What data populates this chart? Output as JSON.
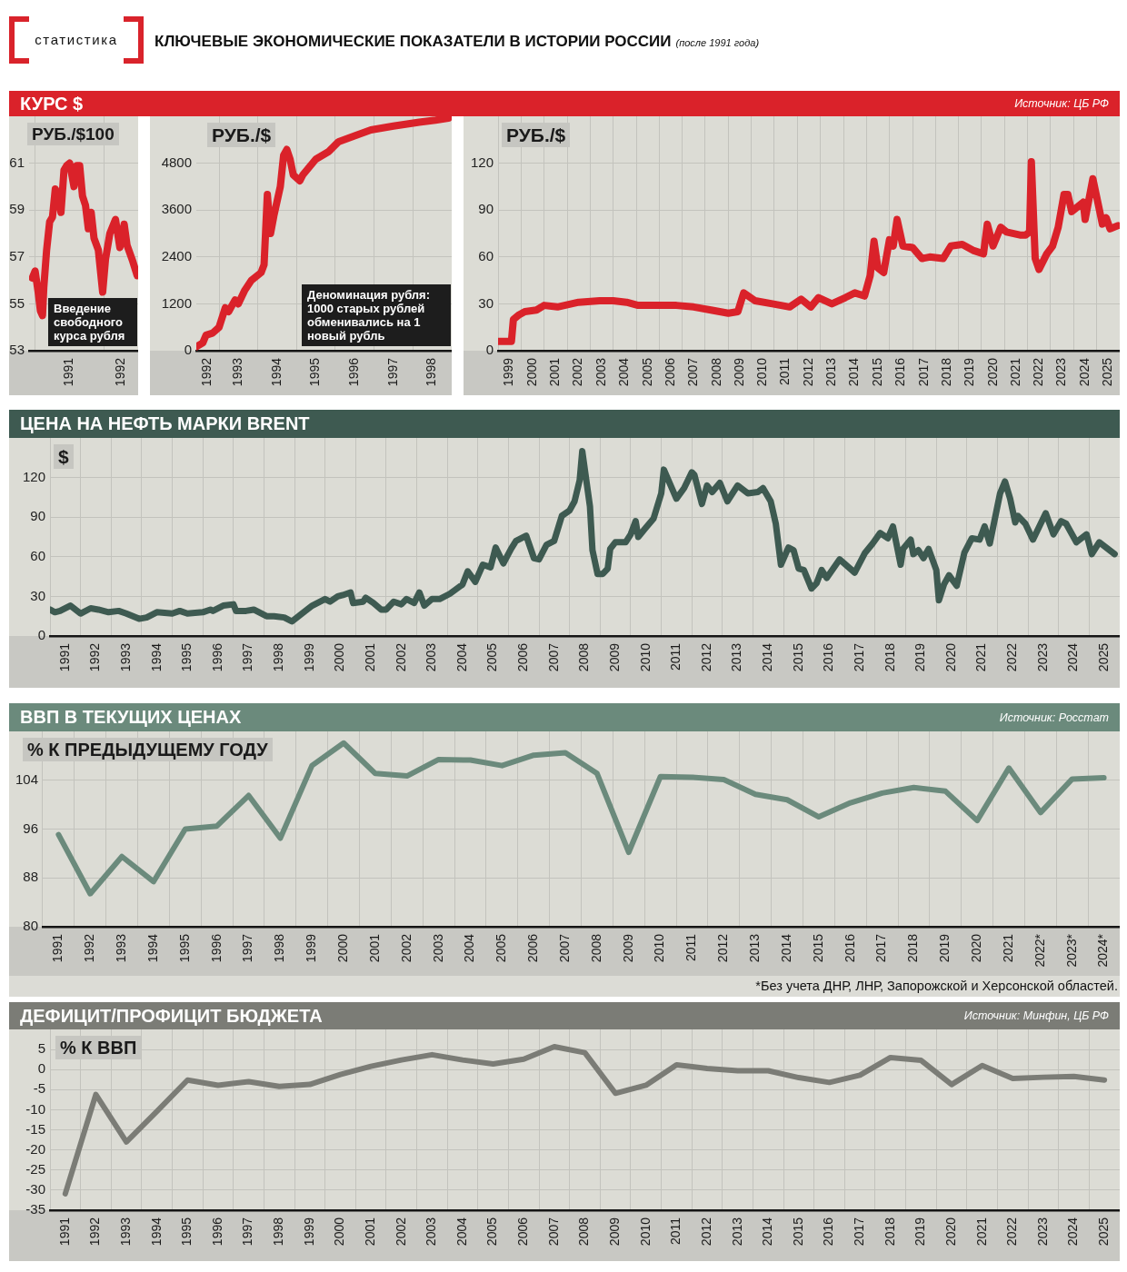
{
  "chart_data": [
    {
      "type": "other",
      "title": "КЛЮЧЕВЫЕ ЭКОНОМИЧЕСКИЕ ПОКАЗАТЕЛИ В ИСТОРИИ РОССИИ",
      "subtitle": "(после 1991 года)",
      "annotations": [
        "статистика"
      ]
    },
    {
      "type": "line",
      "title": "КУРС $",
      "ylabel": "РУБ./$100",
      "annotations": [
        "Источник: ЦБ РФ",
        "Введение свободного курса рубля"
      ],
      "x": [
        "1990-12-18",
        "1991-01-02",
        "1991-01-18",
        "1991-01-30",
        "1991-02-10",
        "1991-02-17",
        "1991-03-04",
        "1991-03-20",
        "1991-04-04",
        "1991-04-19",
        "1991-05-04",
        "1991-05-19",
        "1991-06-04",
        "1991-06-19",
        "1991-07-04",
        "1991-07-27",
        "1991-08-11",
        "1991-08-26",
        "1991-09-10",
        "1991-09-26",
        "1991-10-11",
        "1991-10-26",
        "1991-11-10",
        "1991-12-03",
        "1991-12-26",
        "1992-01-10",
        "1992-02-02",
        "1992-03-03",
        "1992-03-26",
        "1992-04-18",
        "1992-05-03",
        "1992-06-03",
        "1992-06-26"
      ],
      "series": [
        {
          "color": "#da222a",
          "values": [
            56.1,
            56.4,
            55.5,
            54.7,
            54.5,
            55.7,
            57.3,
            58.5,
            58.7,
            59.9,
            59.6,
            58.9,
            60.7,
            60.9,
            61.0,
            60.0,
            60.9,
            60.9,
            59.6,
            59.2,
            58.2,
            58.9,
            57.8,
            57.3,
            55.5,
            56.9,
            58.0,
            58.6,
            57.4,
            58.4,
            57.5,
            56.8,
            56.2
          ]
        }
      ],
      "xlim": [
        "1990-12-01",
        "1992-07-01"
      ],
      "xticks": [
        {
          "value": "1991",
          "label": null
        },
        {
          "value": "1991-07-02",
          "label": "1991"
        },
        {
          "value": "1992",
          "label": null
        },
        {
          "value": "1992-04-01",
          "label": "1992"
        }
      ],
      "ylim": [
        53,
        63
      ],
      "yticks": [
        53,
        55,
        57,
        59,
        61
      ],
      "grid": true
    },
    {
      "type": "line",
      "ylabel": "РУБ./$",
      "annotations": [
        "Деноминация рубля: 1000 старых рублей обменивались на 1 новый рубль"
      ],
      "x": [
        "1992-06",
        "1992-08",
        "1992-09",
        "1992-11",
        "1993-01",
        "1993-03",
        "1993-04",
        "1993-06",
        "1993-07",
        "1993-09",
        "1993-11",
        "1994-02",
        "1994-03",
        "1994-04",
        "1994-05",
        "1994-06",
        "1994-08",
        "1994-09",
        "1994-10",
        "1994-11",
        "1994-12",
        "1995-02",
        "1995-03",
        "1995-07",
        "1995-11",
        "1996-02",
        "1996-07",
        "1996-12",
        "1997-07",
        "1998-03",
        "1998-08",
        "1998-12"
      ],
      "series": [
        {
          "color": "#da222a",
          "values": [
            100,
            200,
            400,
            450,
            600,
            1100,
            1000,
            1300,
            1200,
            1550,
            1800,
            2000,
            2200,
            4000,
            3000,
            3450,
            4200,
            5000,
            5150,
            4900,
            4500,
            4350,
            4500,
            4900,
            5100,
            5350,
            5500,
            5650,
            5750,
            5850,
            5900,
            5950
          ]
        }
      ],
      "xlim": [
        "1992-06",
        "1999"
      ],
      "xticks": [
        {
          "value": "1992-09-16",
          "label": "1992"
        },
        {
          "value": "1993",
          "label": null
        },
        {
          "value": "1993-07-02",
          "label": "1993"
        },
        {
          "value": "1994",
          "label": null
        },
        {
          "value": "1994-07-02",
          "label": "1994"
        },
        {
          "value": "1995",
          "label": null
        },
        {
          "value": "1995-07-02",
          "label": "1995"
        },
        {
          "value": "1996",
          "label": null
        },
        {
          "value": "1996-07-02",
          "label": "1996"
        },
        {
          "value": "1997",
          "label": null
        },
        {
          "value": "1997-07-02",
          "label": "1997"
        },
        {
          "value": "1998",
          "label": null
        },
        {
          "value": "1998-07-02",
          "label": "1998"
        }
      ],
      "ylim": [
        0,
        6000
      ],
      "yticks": [
        0,
        1200,
        2400,
        3600,
        4800
      ],
      "grid": true
    },
    {
      "type": "line",
      "ylabel": "РУБ./$",
      "x": [
        "1999-01",
        "1999-08",
        "1999-09",
        "1999-12",
        "2000-03",
        "2000-09",
        "2001-01",
        "2001-08",
        "2002-07",
        "2003-06",
        "2004-01",
        "2004-08",
        "2005-02",
        "2005-11",
        "2006-10",
        "2007-07",
        "2008-04",
        "2009-01",
        "2009-06",
        "2009-09",
        "2010-03",
        "2010-12",
        "2011-09",
        "2012-03",
        "2012-08",
        "2012-12",
        "2013-07",
        "2014-02",
        "2014-07",
        "2014-12",
        "2015-03",
        "2015-05",
        "2015-07",
        "2015-10",
        "2016-01",
        "2016-03",
        "2016-05",
        "2016-08",
        "2017-01",
        "2017-06",
        "2017-10",
        "2018-05",
        "2018-09",
        "2019-03",
        "2019-09",
        "2020-02",
        "2020-04",
        "2020-07",
        "2020-11",
        "2021-02",
        "2021-09",
        "2021-12",
        "2022-02",
        "2022-03",
        "2022-05",
        "2022-07",
        "2022-11",
        "2023-02",
        "2023-05",
        "2023-08",
        "2023-10",
        "2023-12",
        "2024-06",
        "2024-07",
        "2024-11",
        "2025-04",
        "2025-06",
        "2025-08",
        "2025-12"
      ],
      "series": [
        {
          "color": "#da222a",
          "values": [
            6,
            6,
            20,
            23,
            25,
            26,
            29,
            28,
            31,
            32,
            32,
            31,
            29,
            29,
            29,
            28,
            26,
            24,
            25,
            37,
            32,
            30,
            28,
            33,
            28,
            34,
            30,
            34,
            37,
            35,
            48,
            70,
            53,
            50,
            71,
            67,
            84,
            67,
            66,
            59,
            60,
            59,
            67,
            68,
            64,
            62,
            81,
            67,
            79,
            76,
            74,
            74,
            76,
            121,
            59,
            52,
            62,
            67,
            79,
            100,
            100,
            89,
            95,
            84,
            110,
            81,
            85,
            78,
            80
          ]
        }
      ],
      "xlim": [
        "1999",
        "2026"
      ],
      "xticks": [
        {
          "value": "1999",
          "label": null
        },
        {
          "value": "1999-07-02",
          "label": "1999"
        },
        {
          "value": "2000",
          "label": null
        },
        {
          "value": "2000-07-02",
          "label": "2000"
        },
        {
          "value": "2001",
          "label": null
        },
        {
          "value": "2001-07-02",
          "label": "2001"
        },
        {
          "value": "2002",
          "label": null
        },
        {
          "value": "2002-07-02",
          "label": "2002"
        },
        {
          "value": "2003",
          "label": null
        },
        {
          "value": "2003-07-02",
          "label": "2003"
        },
        {
          "value": "2004",
          "label": null
        },
        {
          "value": "2004-07-02",
          "label": "2004"
        },
        {
          "value": "2005",
          "label": null
        },
        {
          "value": "2005-07-02",
          "label": "2005"
        },
        {
          "value": "2006",
          "label": null
        },
        {
          "value": "2006-07-02",
          "label": "2006"
        },
        {
          "value": "2007",
          "label": null
        },
        {
          "value": "2007-07-02",
          "label": "2007"
        },
        {
          "value": "2008",
          "label": null
        },
        {
          "value": "2008-07-02",
          "label": "2008"
        },
        {
          "value": "2009",
          "label": null
        },
        {
          "value": "2009-07-02",
          "label": "2009"
        },
        {
          "value": "2010",
          "label": null
        },
        {
          "value": "2010-07-02",
          "label": "2010"
        },
        {
          "value": "2011",
          "label": null
        },
        {
          "value": "2011-07-02",
          "label": "2011"
        },
        {
          "value": "2012",
          "label": null
        },
        {
          "value": "2012-07-02",
          "label": "2012"
        },
        {
          "value": "2013",
          "label": null
        },
        {
          "value": "2013-07-02",
          "label": "2013"
        },
        {
          "value": "2014",
          "label": null
        },
        {
          "value": "2014-07-02",
          "label": "2014"
        },
        {
          "value": "2015",
          "label": null
        },
        {
          "value": "2015-07-02",
          "label": "2015"
        },
        {
          "value": "2016",
          "label": null
        },
        {
          "value": "2016-07-02",
          "label": "2016"
        },
        {
          "value": "2017",
          "label": null
        },
        {
          "value": "2017-07-02",
          "label": "2017"
        },
        {
          "value": "2018",
          "label": null
        },
        {
          "value": "2018-07-02",
          "label": "2018"
        },
        {
          "value": "2019",
          "label": null
        },
        {
          "value": "2019-07-02",
          "label": "2019"
        },
        {
          "value": "2020",
          "label": null
        },
        {
          "value": "2020-07-02",
          "label": "2020"
        },
        {
          "value": "2021",
          "label": null
        },
        {
          "value": "2021-07-02",
          "label": "2021"
        },
        {
          "value": "2022",
          "label": null
        },
        {
          "value": "2022-07-02",
          "label": "2022"
        },
        {
          "value": "2023",
          "label": null
        },
        {
          "value": "2023-07-02",
          "label": "2023"
        },
        {
          "value": "2024",
          "label": null
        },
        {
          "value": "2024-07-02",
          "label": "2024"
        },
        {
          "value": "2025",
          "label": null
        },
        {
          "value": "2025-07-02",
          "label": "2025"
        }
      ],
      "ylim": [
        0,
        150
      ],
      "yticks": [
        0,
        30,
        60,
        90,
        120
      ],
      "grid": true
    },
    {
      "type": "line",
      "title": "ЦЕНА НА НЕФТЬ МАРКИ BRENT",
      "ylabel": "$",
      "x": [
        "1991-01",
        "1991-03",
        "1991-05",
        "1991-09",
        "1992-01",
        "1992-05",
        "1992-08",
        "1992-12",
        "1993-04",
        "1993-07",
        "1993-12",
        "1994-03",
        "1994-07",
        "1995-01",
        "1995-04",
        "1995-07",
        "1996-01",
        "1996-04",
        "1996-05",
        "1996-09",
        "1997-01",
        "1997-02",
        "1997-06",
        "1997-09",
        "1998-02",
        "1998-05",
        "1998-09",
        "1998-12",
        "1999-04",
        "1999-08",
        "2000-01",
        "2000-03",
        "2000-06",
        "2000-08",
        "2000-11",
        "2000-12",
        "2001-04",
        "2001-05",
        "2001-08",
        "2001-11",
        "2002-01",
        "2002-04",
        "2002-07",
        "2002-09",
        "2002-12",
        "2003-02",
        "2003-04",
        "2003-07",
        "2003-10",
        "2004-02",
        "2004-07",
        "2004-09",
        "2004-12",
        "2005-03",
        "2005-06",
        "2005-08",
        "2005-11",
        "2006-02",
        "2006-04",
        "2006-08",
        "2006-11",
        "2007-01",
        "2007-04",
        "2007-07",
        "2007-10",
        "2008-01",
        "2008-03",
        "2008-05",
        "2008-06",
        "2008-09",
        "2008-10",
        "2008-12",
        "2009-02",
        "2009-04",
        "2009-05",
        "2009-07",
        "2009-11",
        "2010-01",
        "2010-03",
        "2010-04",
        "2010-07",
        "2010-10",
        "2011-01",
        "2011-02",
        "2011-05",
        "2011-07",
        "2011-10",
        "2012-01",
        "2012-02",
        "2012-05",
        "2012-07",
        "2012-09",
        "2012-12",
        "2013-03",
        "2013-07",
        "2013-11",
        "2014-03",
        "2014-05",
        "2014-08",
        "2014-10",
        "2014-12",
        "2015-03",
        "2015-05",
        "2015-07",
        "2015-09",
        "2015-12",
        "2016-02",
        "2016-04",
        "2016-06",
        "2016-11",
        "2017-05",
        "2017-09",
        "2017-12",
        "2018-03",
        "2018-06",
        "2018-08",
        "2018-11",
        "2018-12",
        "2019-03",
        "2019-04",
        "2019-06",
        "2019-08",
        "2019-10",
        "2020-01",
        "2020-02",
        "2020-04",
        "2020-06",
        "2020-09",
        "2020-12",
        "2021-03",
        "2021-06",
        "2021-08",
        "2021-10",
        "2022-02",
        "2022-04",
        "2022-06",
        "2022-08",
        "2022-09",
        "2022-12",
        "2023-03",
        "2023-08",
        "2023-11",
        "2024-02",
        "2024-04",
        "2024-08",
        "2024-12",
        "2025-02",
        "2025-05",
        "2025-11"
      ],
      "series": [
        {
          "color": "#3e5a51",
          "values": [
            20,
            18,
            19,
            23,
            17,
            21,
            20,
            18,
            19,
            17,
            13,
            14,
            18,
            17,
            19,
            17,
            18,
            20,
            19,
            23,
            24,
            19,
            19,
            20,
            15,
            15,
            14,
            11,
            17,
            23,
            28,
            26,
            30,
            31,
            33,
            25,
            26,
            29,
            25,
            20,
            20,
            26,
            24,
            28,
            25,
            33,
            23,
            28,
            28,
            32,
            39,
            49,
            41,
            54,
            52,
            67,
            55,
            66,
            72,
            76,
            59,
            58,
            69,
            72,
            91,
            95,
            102,
            118,
            140,
            98,
            65,
            47,
            47,
            51,
            66,
            71,
            71,
            77,
            87,
            75,
            82,
            89,
            108,
            126,
            113,
            104,
            112,
            124,
            122,
            100,
            114,
            109,
            116,
            102,
            114,
            108,
            109,
            112,
            102,
            85,
            54,
            67,
            65,
            51,
            50,
            36,
            40,
            50,
            44,
            58,
            48,
            63,
            70,
            78,
            74,
            83,
            54,
            66,
            73,
            62,
            65,
            59,
            66,
            50,
            27,
            39,
            46,
            38,
            63,
            74,
            73,
            83,
            70,
            108,
            117,
            104,
            86,
            91,
            85,
            73,
            93,
            77,
            87,
            85,
            71,
            77,
            62,
            71,
            62
          ]
        }
      ],
      "xlim": [
        "1991",
        "2026"
      ],
      "xticks": [
        {
          "value": "1991",
          "label": null
        },
        {
          "value": "1991-07-02",
          "label": "1991"
        },
        {
          "value": "1992",
          "label": null
        },
        {
          "value": "1992-07-02",
          "label": "1992"
        },
        {
          "value": "1993",
          "label": null
        },
        {
          "value": "1993-07-02",
          "label": "1993"
        },
        {
          "value": "1994",
          "label": null
        },
        {
          "value": "1994-07-02",
          "label": "1994"
        },
        {
          "value": "1995",
          "label": null
        },
        {
          "value": "1995-07-02",
          "label": "1995"
        },
        {
          "value": "1996",
          "label": null
        },
        {
          "value": "1996-07-02",
          "label": "1996"
        },
        {
          "value": "1997",
          "label": null
        },
        {
          "value": "1997-07-02",
          "label": "1997"
        },
        {
          "value": "1998",
          "label": null
        },
        {
          "value": "1998-07-02",
          "label": "1998"
        },
        {
          "value": "1999",
          "label": null
        },
        {
          "value": "1999-07-02",
          "label": "1999"
        },
        {
          "value": "2000",
          "label": null
        },
        {
          "value": "2000-07-02",
          "label": "2000"
        },
        {
          "value": "2001",
          "label": null
        },
        {
          "value": "2001-07-02",
          "label": "2001"
        },
        {
          "value": "2002",
          "label": null
        },
        {
          "value": "2002-07-02",
          "label": "2002"
        },
        {
          "value": "2003",
          "label": null
        },
        {
          "value": "2003-07-02",
          "label": "2003"
        },
        {
          "value": "2004",
          "label": null
        },
        {
          "value": "2004-07-02",
          "label": "2004"
        },
        {
          "value": "2005",
          "label": null
        },
        {
          "value": "2005-07-02",
          "label": "2005"
        },
        {
          "value": "2006",
          "label": null
        },
        {
          "value": "2006-07-02",
          "label": "2006"
        },
        {
          "value": "2007",
          "label": null
        },
        {
          "value": "2007-07-02",
          "label": "2007"
        },
        {
          "value": "2008",
          "label": null
        },
        {
          "value": "2008-07-02",
          "label": "2008"
        },
        {
          "value": "2009",
          "label": null
        },
        {
          "value": "2009-07-02",
          "label": "2009"
        },
        {
          "value": "2010",
          "label": null
        },
        {
          "value": "2010-07-02",
          "label": "2010"
        },
        {
          "value": "2011",
          "label": null
        },
        {
          "value": "2011-07-02",
          "label": "2011"
        },
        {
          "value": "2012",
          "label": null
        },
        {
          "value": "2012-07-02",
          "label": "2012"
        },
        {
          "value": "2013",
          "label": null
        },
        {
          "value": "2013-07-02",
          "label": "2013"
        },
        {
          "value": "2014",
          "label": null
        },
        {
          "value": "2014-07-02",
          "label": "2014"
        },
        {
          "value": "2015",
          "label": null
        },
        {
          "value": "2015-07-02",
          "label": "2015"
        },
        {
          "value": "2016",
          "label": null
        },
        {
          "value": "2016-07-02",
          "label": "2016"
        },
        {
          "value": "2017",
          "label": null
        },
        {
          "value": "2017-07-02",
          "label": "2017"
        },
        {
          "value": "2018",
          "label": null
        },
        {
          "value": "2018-07-02",
          "label": "2018"
        },
        {
          "value": "2019",
          "label": null
        },
        {
          "value": "2019-07-02",
          "label": "2019"
        },
        {
          "value": "2020",
          "label": null
        },
        {
          "value": "2020-07-02",
          "label": "2020"
        },
        {
          "value": "2021",
          "label": null
        },
        {
          "value": "2021-07-02",
          "label": "2021"
        },
        {
          "value": "2022",
          "label": null
        },
        {
          "value": "2022-07-02",
          "label": "2022"
        },
        {
          "value": "2023",
          "label": null
        },
        {
          "value": "2023-07-02",
          "label": "2023"
        },
        {
          "value": "2024",
          "label": null
        },
        {
          "value": "2024-07-02",
          "label": "2024"
        },
        {
          "value": "2025",
          "label": null
        },
        {
          "value": "2025-07-02",
          "label": "2025"
        }
      ],
      "ylim": [
        0,
        150
      ],
      "yticks": [
        0,
        30,
        60,
        90,
        120
      ],
      "grid": true
    },
    {
      "type": "line",
      "title": "ВВП В ТЕКУЩИХ ЦЕНАХ",
      "ylabel": "% К ПРЕДЫДУЩЕМУ ГОДУ",
      "annotations": [
        "Источник: Росстат",
        "*Без учета ДНР, ЛНР, Запорожской и Херсонской областей."
      ],
      "categories": [
        "1991",
        "1992",
        "1993",
        "1994",
        "1995",
        "1996",
        "1997",
        "1998",
        "1999",
        "2000",
        "2001",
        "2002",
        "2003",
        "2004",
        "2005",
        "2006",
        "2007",
        "2008",
        "2009",
        "2010",
        "2011",
        "2012",
        "2013",
        "2014",
        "2015",
        "2016",
        "2017",
        "2018",
        "2019",
        "2020",
        "2021",
        "2022*",
        "2023*",
        "2024*"
      ],
      "series": [
        {
          "color": "#6b8a7c",
          "values": [
            95.1,
            85.4,
            91.5,
            87.4,
            96.0,
            96.5,
            101.5,
            94.5,
            106.4,
            110.1,
            105.1,
            104.7,
            107.4,
            107.3,
            106.4,
            108.1,
            108.5,
            105.1,
            92.2,
            104.6,
            104.5,
            104.1,
            101.7,
            100.8,
            98.0,
            100.3,
            101.9,
            102.8,
            102.2,
            97.4,
            106.0,
            98.7,
            104.2,
            104.4
          ]
        }
      ],
      "ylim": [
        80,
        112
      ],
      "yticks": [
        80,
        88,
        96,
        104
      ],
      "grid": true
    },
    {
      "type": "line",
      "title": "ДЕФИЦИТ/ПРОФИЦИТ БЮДЖЕТА",
      "ylabel": "% К ВВП",
      "annotations": [
        "Источник: Минфин, ЦБ РФ"
      ],
      "categories": [
        "1991",
        "1992",
        "1993",
        "1994",
        "1995",
        "1996",
        "1997",
        "1998",
        "1999",
        "2000",
        "2001",
        "2002",
        "2003",
        "2004",
        "2005",
        "2006",
        "2007",
        "2008",
        "2009",
        "2010",
        "2011",
        "2012",
        "2013",
        "2014",
        "2015",
        "2016",
        "2017",
        "2018",
        "2019",
        "2020",
        "2021",
        "2022",
        "2023",
        "2024",
        "2025"
      ],
      "series": [
        {
          "color": "#7b7c76",
          "values": [
            -30.9,
            -6.2,
            -18.0,
            -10.4,
            -2.6,
            -3.9,
            -3.0,
            -4.2,
            -3.7,
            -1.2,
            0.8,
            2.4,
            3.7,
            2.4,
            1.4,
            2.6,
            5.7,
            4.2,
            -5.9,
            -3.9,
            1.2,
            0.3,
            -0.3,
            -0.3,
            -2.0,
            -3.2,
            -1.4,
            3.0,
            2.3,
            -3.7,
            1.0,
            -2.2,
            -1.9,
            -1.7,
            -2.6
          ]
        }
      ],
      "ylim": [
        -35,
        10
      ],
      "yticks": [
        -35,
        -30,
        -25,
        -20,
        -15,
        -10,
        -5,
        0,
        5
      ],
      "grid": true
    }
  ]
}
